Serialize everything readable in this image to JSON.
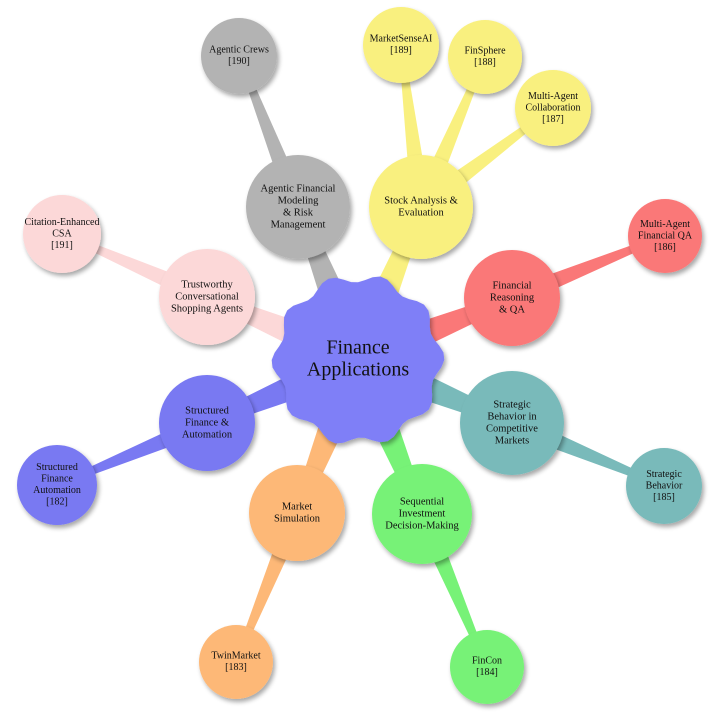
{
  "center": {
    "lines": [
      "Finance",
      "Applications"
    ]
  },
  "branches": [
    {
      "id": "agentic-financial-modeling",
      "color": "#b3b3b3",
      "lines": [
        "Agentic Financial",
        "Modeling",
        "& Risk",
        "Management"
      ],
      "children": [
        {
          "id": "agentic-crews",
          "lines": [
            "Agentic Crews",
            "[190]"
          ]
        }
      ]
    },
    {
      "id": "stock-analysis",
      "color": "#f9f07f",
      "lines": [
        "Stock Analysis &",
        "Evaluation"
      ],
      "children": [
        {
          "id": "marketsenseai",
          "lines": [
            "MarketSenseAI",
            "[189]"
          ]
        },
        {
          "id": "finsphere",
          "lines": [
            "FinSphere",
            "[188]"
          ]
        },
        {
          "id": "multi-agent-collaboration",
          "lines": [
            "Multi-Agent",
            "Collaboration",
            "[187]"
          ]
        }
      ]
    },
    {
      "id": "financial-reasoning-qa",
      "color": "#fa7878",
      "lines": [
        "Financial",
        "Reasoning",
        "& QA"
      ],
      "children": [
        {
          "id": "multi-agent-financial-qa",
          "lines": [
            "Multi-Agent",
            "Financial QA",
            "[186]"
          ]
        }
      ]
    },
    {
      "id": "strategic-behavior-markets",
      "color": "#79baba",
      "lines": [
        "Strategic",
        "Behavior in",
        "Competitive",
        "Markets"
      ],
      "children": [
        {
          "id": "strategic-behavior",
          "lines": [
            "Strategic",
            "Behavior",
            "[185]"
          ]
        }
      ]
    },
    {
      "id": "sequential-investment",
      "color": "#77f277",
      "lines": [
        "Sequential",
        "Investment",
        "Decision-Making"
      ],
      "children": [
        {
          "id": "fincon",
          "lines": [
            "FinCon",
            "[184]"
          ]
        }
      ]
    },
    {
      "id": "market-simulation",
      "color": "#fdb877",
      "lines": [
        "Market",
        "Simulation"
      ],
      "children": [
        {
          "id": "twinmarket",
          "lines": [
            "TwinMarket",
            "[183]"
          ]
        }
      ]
    },
    {
      "id": "structured-finance-automation",
      "color": "#7979f2",
      "lines": [
        "Structured",
        "Finance &",
        "Automation"
      ],
      "children": [
        {
          "id": "structured-finance-automation-leaf",
          "lines": [
            "Structured",
            "Finance",
            "Automation",
            "[182]"
          ]
        }
      ]
    },
    {
      "id": "trustworthy-shopping-agents",
      "color": "#fcd8d8",
      "lines": [
        "Trustworthy",
        "Conversational",
        "Shopping Agents"
      ],
      "children": [
        {
          "id": "citation-enhanced-csa",
          "lines": [
            "Citation-Enhanced",
            "CSA",
            "[191]"
          ]
        }
      ]
    }
  ],
  "center_color": "#7f7ff7"
}
